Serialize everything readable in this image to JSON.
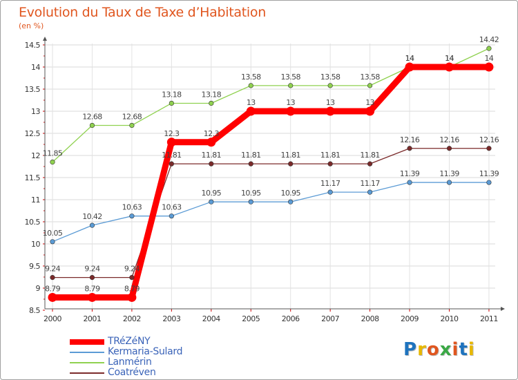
{
  "header": {
    "title": "Evolution du Taux de Taxe d’Habitation",
    "subtitle": "(en %)"
  },
  "logo": {
    "text": "Proxiti",
    "letter_colors": [
      "#1e73be",
      "#e8b800",
      "#e0561f",
      "#3aa845",
      "#e0561f",
      "#1e73be",
      "#e8b800"
    ]
  },
  "chart_data": {
    "type": "line",
    "x": [
      "2000",
      "2001",
      "2002",
      "2003",
      "2004",
      "2005",
      "2006",
      "2007",
      "2008",
      "2009",
      "2010",
      "2011"
    ],
    "ylim": [
      8.5,
      14.5
    ],
    "yticks": [
      "8.5",
      "9",
      "9.5",
      "10",
      "10.5",
      "11",
      "11.5",
      "12",
      "12.5",
      "13",
      "13.5",
      "14",
      "14.5"
    ],
    "grid": "horizontal",
    "legend_position": "bottom-left",
    "series": [
      {
        "name": "TRéZéNY",
        "color": "#ff0000",
        "emphasis": true,
        "values": [
          8.79,
          8.79,
          8.79,
          12.3,
          12.3,
          13,
          13,
          13,
          13,
          14,
          14,
          14
        ],
        "labels": [
          "8.79",
          "8.79",
          "8.79",
          "12.3",
          "12.3",
          "13",
          "13",
          "13",
          "13",
          "14",
          "14",
          "14"
        ]
      },
      {
        "name": "Kermaria-Sulard",
        "color": "#5b9bd5",
        "values": [
          10.05,
          10.42,
          10.63,
          10.63,
          10.95,
          10.95,
          10.95,
          11.17,
          11.17,
          11.39,
          11.39,
          11.39
        ],
        "labels": [
          "10.05",
          "10.42",
          "10.63",
          "10.63",
          "10.95",
          "10.95",
          "10.95",
          "11.17",
          "11.17",
          "11.39",
          "11.39",
          "11.39"
        ]
      },
      {
        "name": "Lanmérin",
        "color": "#8fd14f",
        "values": [
          11.85,
          12.68,
          12.68,
          13.18,
          13.18,
          13.58,
          13.58,
          13.58,
          13.58,
          14,
          14,
          14.42
        ],
        "labels": [
          "11.85",
          "12.68",
          "12.68",
          "13.18",
          "13.18",
          "13.58",
          "13.58",
          "13.58",
          "13.58",
          "14",
          "14",
          "14.42"
        ]
      },
      {
        "name": "Coatréven",
        "color": "#7b2a2a",
        "values": [
          9.24,
          9.24,
          9.24,
          11.81,
          11.81,
          11.81,
          11.81,
          11.81,
          11.81,
          12.16,
          12.16,
          12.16
        ],
        "labels": [
          "9.24",
          "9.24",
          "9.24",
          "11.81",
          "11.81",
          "11.81",
          "11.81",
          "11.81",
          "11.81",
          "12.16",
          "12.16",
          "12.16"
        ]
      }
    ]
  }
}
